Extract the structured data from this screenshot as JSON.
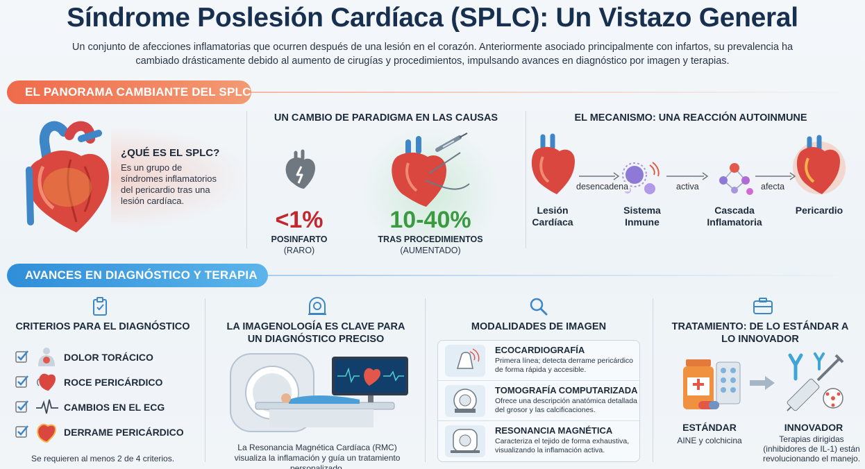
{
  "title": "Síndrome Poslesión Cardíaca (SPLC): Un Vistazo General",
  "subtitle": "Un conjunto de afecciones inflamatorias que ocurren después de una lesión en el corazón. Anteriormente asociado principalmente con infartos, su prevalencia ha cambiado drásticamente debido al aumento de cirugías y procedimientos, impulsando avances en diagnóstico por imagen y terapias.",
  "section1": {
    "banner": "EL PANORAMA CAMBIANTE DEL SPLC",
    "what": {
      "title": "¿QUÉ ES EL SPLC?",
      "text": "Es un grupo de síndromes inflamatorios del pericardio tras una lesión cardíaca."
    },
    "causes": {
      "heading": "UN CAMBIO DE PARADIGMA EN LAS CAUSAS",
      "left": {
        "stat": "<1%",
        "label": "POSINFARTO",
        "sub": "(RARO)"
      },
      "right": {
        "stat": "10-40%",
        "label": "TRAS PROCEDIMIENTOS",
        "sub": "(AUMENTADO)"
      }
    },
    "mechanism": {
      "heading": "EL MECANISMO: UNA REACCIÓN AUTOINMUNE",
      "steps": [
        "Lesión\nCardíaca",
        "Sistema\nInmune",
        "Cascada\nInflamatoria",
        "Pericardio"
      ],
      "arrows": [
        "desencadena",
        "activa",
        "afecta"
      ]
    }
  },
  "section2": {
    "banner": "AVANCES EN DIAGNÓSTICO Y TERAPIA",
    "criteria": {
      "heading": "CRITERIOS PARA EL DIAGNÓSTICO",
      "items": [
        "DOLOR TORÁCICO",
        "ROCE PERICÁRDICO",
        "CAMBIOS EN EL ECG",
        "DERRAME PERICÁRDICO"
      ],
      "note": "Se requieren al menos 2 de 4 criterios."
    },
    "imaging": {
      "heading": "LA IMAGENOLOGÍA ES CLAVE PARA UN DIAGNÓSTICO PRECISO",
      "caption": "La Resonancia Magnética Cardíaca (RMC) visualiza la inflamación y guía un tratamiento personalizado."
    },
    "modalities": {
      "heading": "MODALIDADES DE IMAGEN",
      "items": [
        {
          "title": "ECOCARDIOGRAFÍA",
          "desc": "Primera línea; detecta derrame pericárdico de forma rápida y accesible."
        },
        {
          "title": "TOMOGRAFÍA COMPUTARIZADA",
          "desc": "Ofrece una descripción anatómica detallada del grosor y las calcificaciones."
        },
        {
          "title": "RESONANCIA MAGNÉTICA",
          "desc": "Caracteriza el tejido de forma exhaustiva, visualizando la inflamación activa."
        }
      ]
    },
    "treatment": {
      "heading": "TRATAMIENTO: DE LO ESTÁNDAR A LO INNOVADOR",
      "standard": {
        "label": "ESTÁNDAR",
        "sub": "AINE y colchicina"
      },
      "innovative": {
        "label": "INNOVADOR",
        "sub": "Terapias dirigidas (inhibidores de IL-1) están revolucionando el manejo."
      }
    }
  },
  "colors": {
    "orange": "#ef6a4b",
    "blue": "#2f8ed8",
    "red_stat": "#c4262e",
    "green_stat": "#3a9a3f",
    "navy": "#17304f"
  }
}
